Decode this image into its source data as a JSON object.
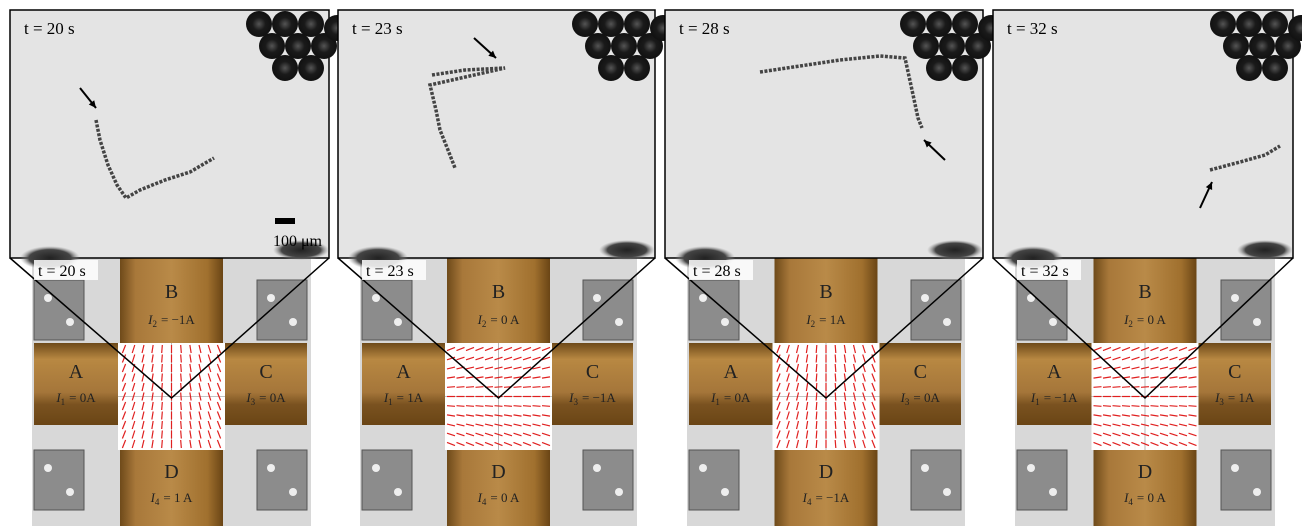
{
  "scale_bar": "100 μm",
  "panels": [
    {
      "top_time": "t = 20 s",
      "bottom_time": "t = 20 s",
      "coils": [
        {
          "label": "A",
          "symbol": "I",
          "subscript": "1",
          "value": "= 0A"
        },
        {
          "label": "B",
          "symbol": "I",
          "subscript": "2",
          "value": "= −1A"
        },
        {
          "label": "C",
          "symbol": "I",
          "subscript": "3",
          "value": "= 0A"
        },
        {
          "label": "D",
          "symbol": "I",
          "subscript": "4",
          "value": "= 1 A"
        }
      ]
    },
    {
      "top_time": "t = 23 s",
      "bottom_time": "t = 23 s",
      "coils": [
        {
          "label": "A",
          "symbol": "I",
          "subscript": "1",
          "value": "= 1A"
        },
        {
          "label": "B",
          "symbol": "I",
          "subscript": "2",
          "value": "= 0 A"
        },
        {
          "label": "C",
          "symbol": "I",
          "subscript": "3",
          "value": "= −1A"
        },
        {
          "label": "D",
          "symbol": "I",
          "subscript": "4",
          "value": "= 0 A"
        }
      ]
    },
    {
      "top_time": "t = 28 s",
      "bottom_time": "t = 28 s",
      "coils": [
        {
          "label": "A",
          "symbol": "I",
          "subscript": "1",
          "value": "= 0A"
        },
        {
          "label": "B",
          "symbol": "I",
          "subscript": "2",
          "value": "= 1A"
        },
        {
          "label": "C",
          "symbol": "I",
          "subscript": "3",
          "value": "= 0A"
        },
        {
          "label": "D",
          "symbol": "I",
          "subscript": "4",
          "value": "= −1A"
        }
      ]
    },
    {
      "top_time": "t = 32 s",
      "bottom_time": "t = 32 s",
      "coils": [
        {
          "label": "A",
          "symbol": "I",
          "subscript": "1",
          "value": "= −1A"
        },
        {
          "label": "B",
          "symbol": "I",
          "subscript": "2",
          "value": "= 0 A"
        },
        {
          "label": "C",
          "symbol": "I",
          "subscript": "3",
          "value": "= 1A"
        },
        {
          "label": "D",
          "symbol": "I",
          "subscript": "4",
          "value": "= 0 A"
        }
      ]
    }
  ]
}
